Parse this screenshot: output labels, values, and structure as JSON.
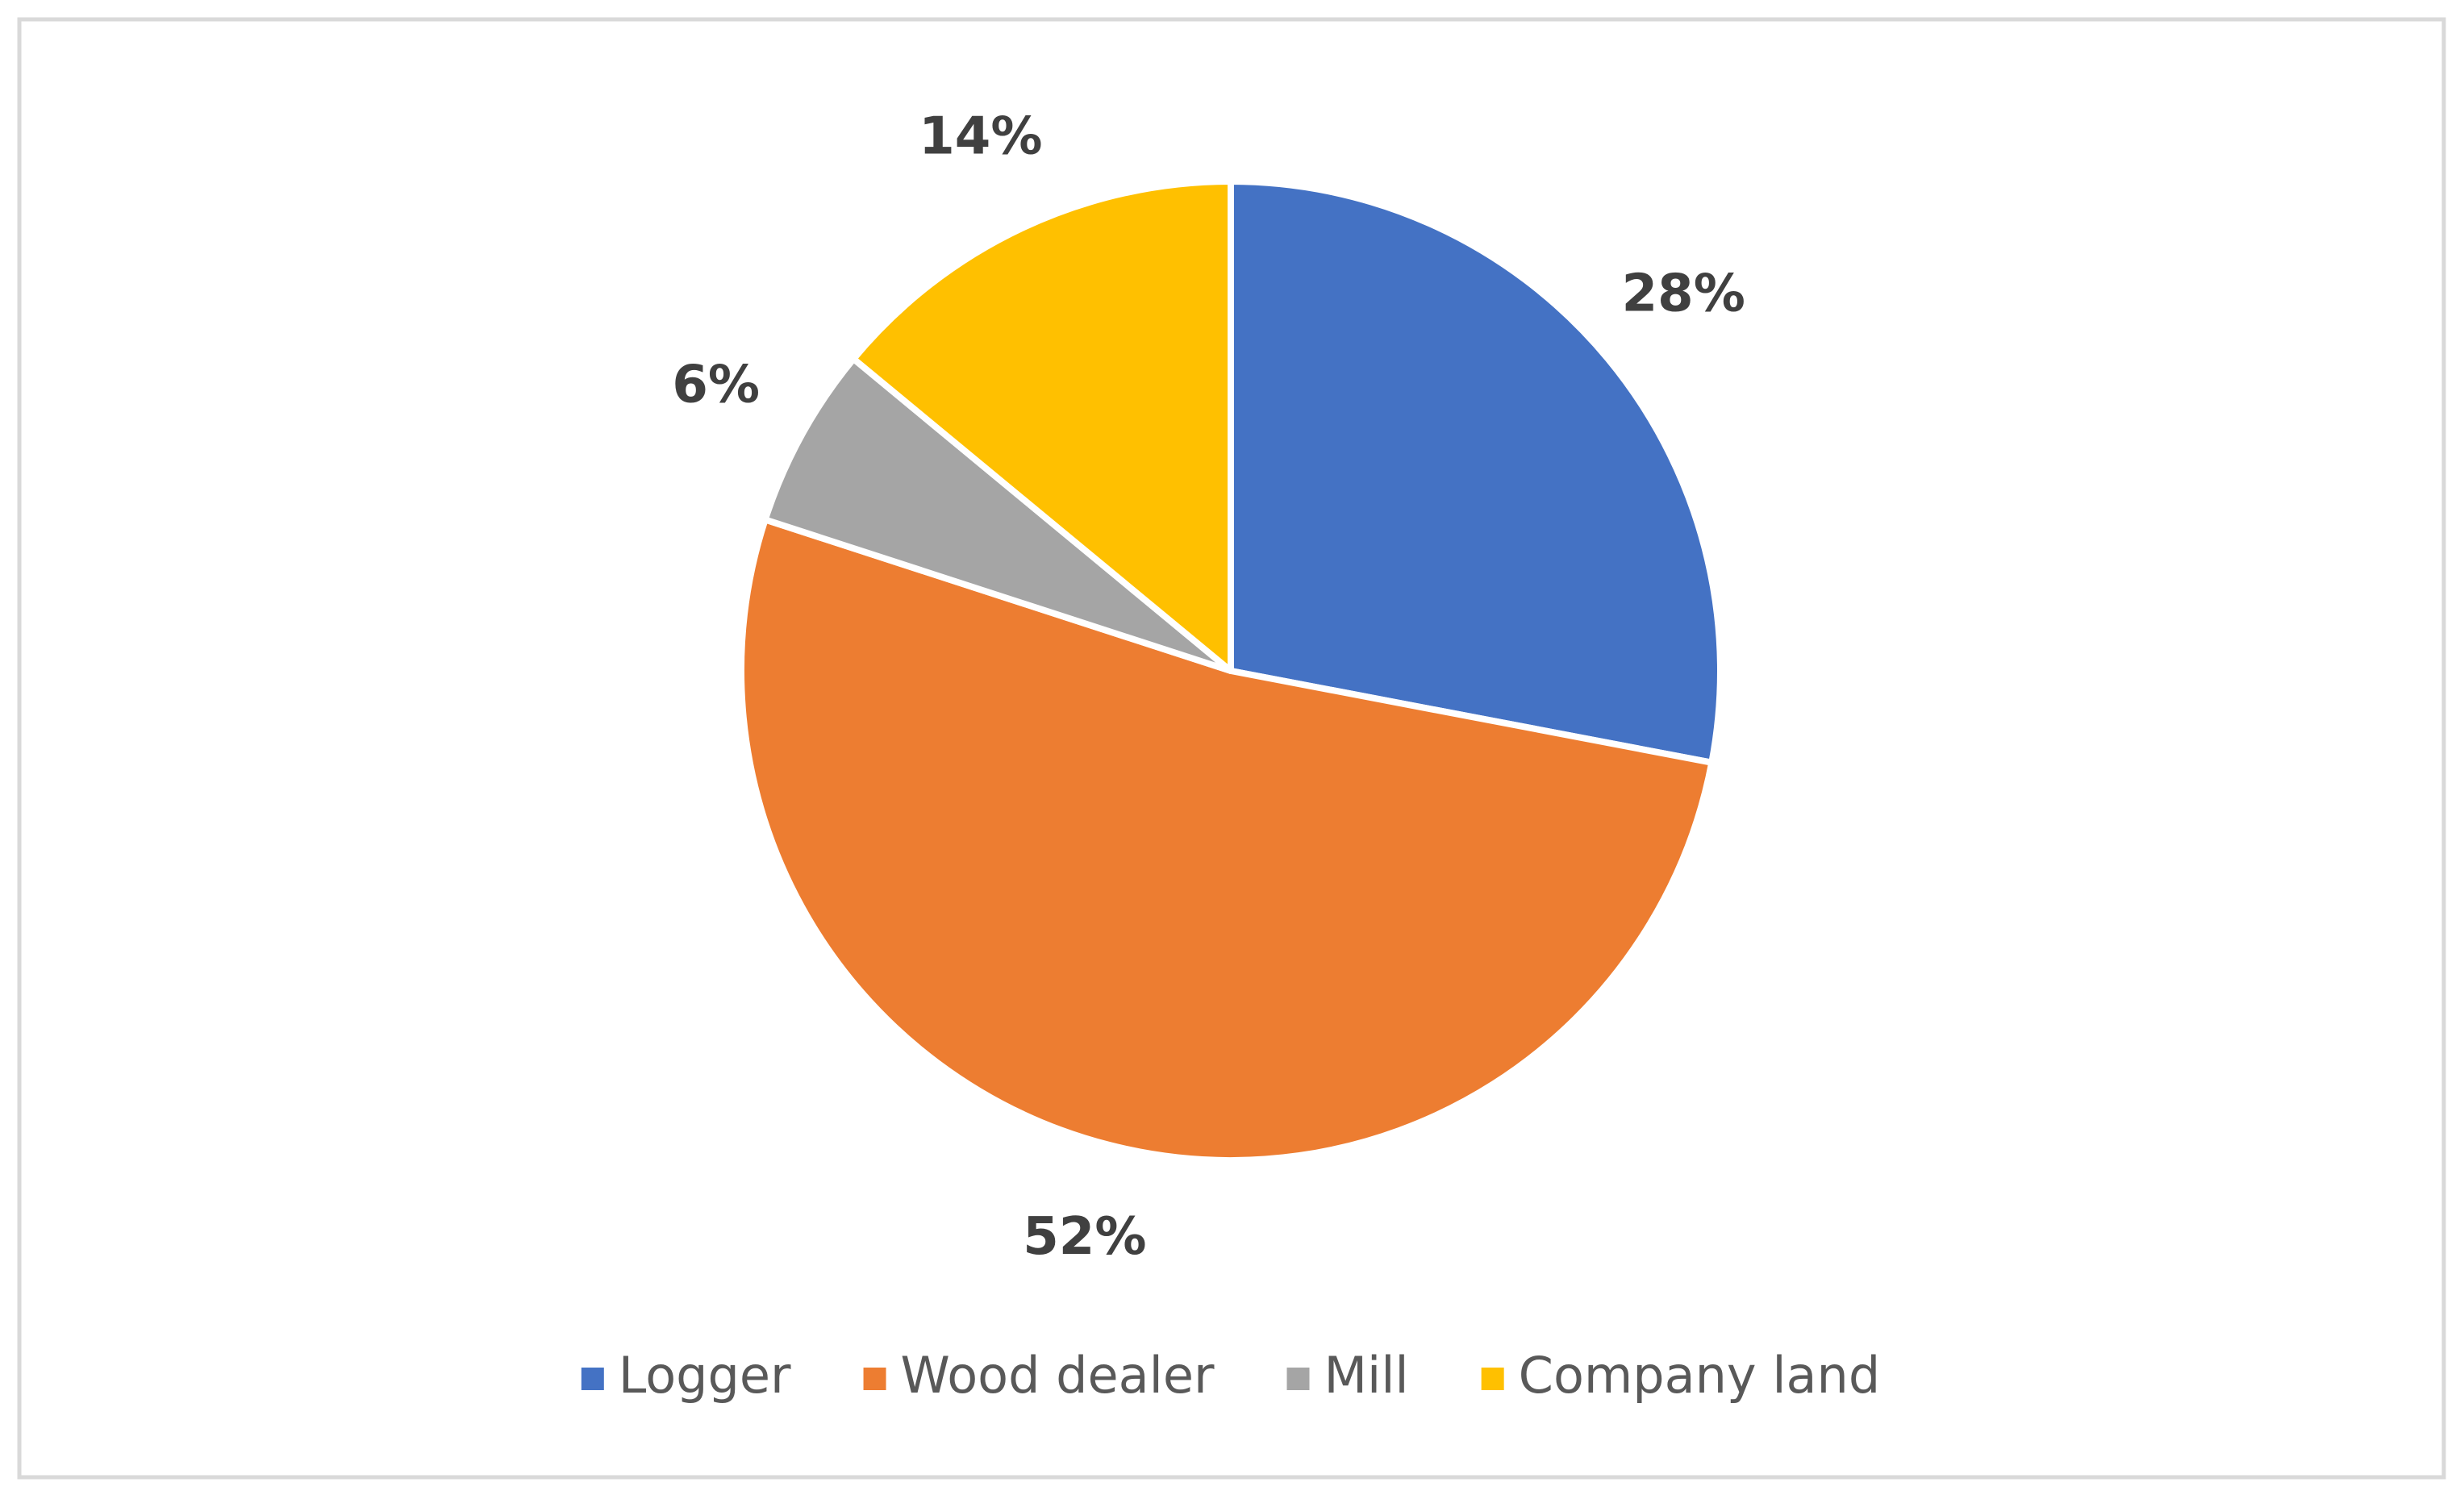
{
  "chart_data": {
    "type": "pie",
    "categories": [
      "Logger",
      "Wood dealer",
      "Mill",
      "Company land"
    ],
    "values": [
      28,
      52,
      6,
      14
    ],
    "value_labels": [
      "28%",
      "52%",
      "6%",
      "14%"
    ],
    "colors": [
      "#4472c4",
      "#ed7d31",
      "#a5a5a5",
      "#ffc000"
    ],
    "legend": "bottom"
  }
}
